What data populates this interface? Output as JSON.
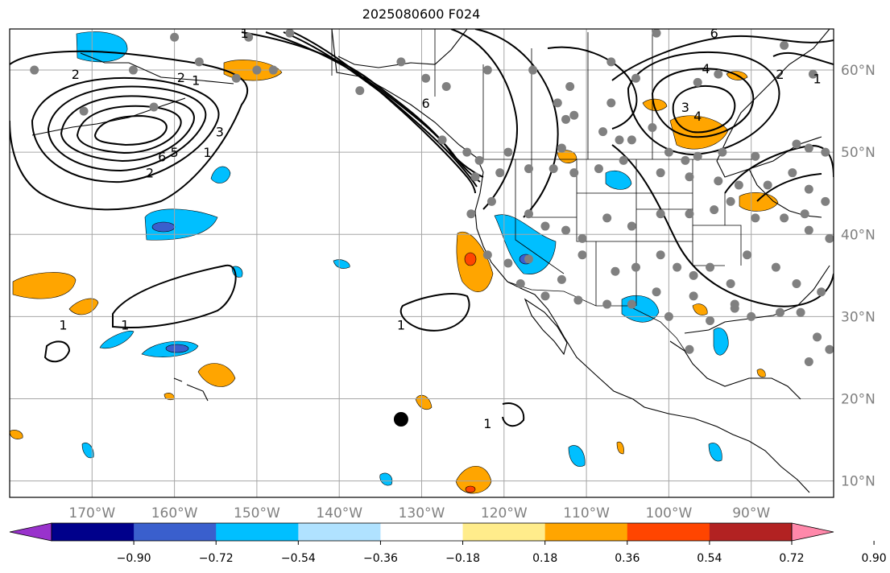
{
  "title": "2025080600 F024",
  "map": {
    "projection": "PlateCarree",
    "lon_range": [
      -180,
      -80
    ],
    "lat_range": [
      8,
      65
    ],
    "lon_ticks": [
      {
        "lon": -170,
        "label": "170°W"
      },
      {
        "lon": -160,
        "label": "160°W"
      },
      {
        "lon": -150,
        "label": "150°W"
      },
      {
        "lon": -140,
        "label": "140°W"
      },
      {
        "lon": -130,
        "label": "130°W"
      },
      {
        "lon": -120,
        "label": "120°W"
      },
      {
        "lon": -110,
        "label": "110°W"
      },
      {
        "lon": -100,
        "label": "100°W"
      },
      {
        "lon": -90,
        "label": "90°W"
      }
    ],
    "lat_ticks": [
      {
        "lat": 60,
        "label": "60°N"
      },
      {
        "lat": 50,
        "label": "50°N"
      },
      {
        "lat": 40,
        "label": "40°N"
      },
      {
        "lat": 30,
        "label": "30°N"
      },
      {
        "lat": 20,
        "label": "20°N"
      },
      {
        "lat": 10,
        "label": "10°N"
      }
    ],
    "grid": true,
    "colors": {
      "grid": "#a6a6a6",
      "contour": "#000000",
      "station": "#808080",
      "land": "#000000"
    }
  },
  "colorbar": {
    "extend": "both",
    "colors": [
      "#9932CC",
      "#00008B",
      "#3A5FCD",
      "#00BFFF",
      "#B0E2FF",
      "#FFFFFF",
      "#FFEC8B",
      "#FFA500",
      "#FF4500",
      "#B22222",
      "#FF88AA"
    ],
    "ticks": [
      "−0.90",
      "−0.72",
      "−0.54",
      "−0.36",
      "−0.18",
      "0.18",
      "0.36",
      "0.54",
      "0.72",
      "0.90"
    ]
  },
  "contour_labels": [
    {
      "text": "2",
      "lon": -172.0,
      "lat": 59.5
    },
    {
      "text": "2",
      "lon": -163.0,
      "lat": 47.5
    },
    {
      "text": "6",
      "lon": -161.5,
      "lat": 49.5
    },
    {
      "text": "5",
      "lon": -160.0,
      "lat": 50.0
    },
    {
      "text": "1",
      "lon": -156.0,
      "lat": 50.0
    },
    {
      "text": "3",
      "lon": -154.5,
      "lat": 52.5
    },
    {
      "text": "2",
      "lon": -159.2,
      "lat": 59.1
    },
    {
      "text": "1",
      "lon": -157.4,
      "lat": 58.8
    },
    {
      "text": "1",
      "lon": -151.5,
      "lat": 64.5
    },
    {
      "text": "6",
      "lon": -129.5,
      "lat": 56.0
    },
    {
      "text": "4",
      "lon": -95.5,
      "lat": 60.2
    },
    {
      "text": "6",
      "lon": -94.5,
      "lat": 64.5
    },
    {
      "text": "2",
      "lon": -86.5,
      "lat": 59.5
    },
    {
      "text": "1",
      "lon": -82.0,
      "lat": 59.0
    },
    {
      "text": "3",
      "lon": -98.0,
      "lat": 55.5
    },
    {
      "text": "4",
      "lon": -96.5,
      "lat": 54.4
    },
    {
      "text": "1",
      "lon": -173.5,
      "lat": 29.0
    },
    {
      "text": "1",
      "lon": -166.0,
      "lat": 29.0
    },
    {
      "text": "1",
      "lon": -132.5,
      "lat": 29.0
    },
    {
      "text": "1",
      "lon": -122.0,
      "lat": 17.0
    }
  ],
  "stations": [
    [
      -177,
      60
    ],
    [
      -165,
      60
    ],
    [
      -160,
      64
    ],
    [
      -157,
      61
    ],
    [
      -151,
      64
    ],
    [
      -148,
      60
    ],
    [
      -146,
      64.5
    ],
    [
      -137.5,
      57.5
    ],
    [
      -132.5,
      61
    ],
    [
      -129.5,
      59
    ],
    [
      -171,
      55
    ],
    [
      -162.5,
      55.5
    ],
    [
      -152.5,
      59
    ],
    [
      -150,
      60
    ],
    [
      -127,
      58
    ],
    [
      -122,
      60
    ],
    [
      -116.5,
      60
    ],
    [
      -112,
      58
    ],
    [
      -107,
      61
    ],
    [
      -104,
      59
    ],
    [
      -96.5,
      58.5
    ],
    [
      -94,
      59.5
    ],
    [
      -101.5,
      64.5
    ],
    [
      -86,
      63
    ],
    [
      -82.5,
      59.5
    ],
    [
      -113.5,
      56
    ],
    [
      -112.5,
      54
    ],
    [
      -111.5,
      54.5
    ],
    [
      -107,
      56
    ],
    [
      -108,
      52.5
    ],
    [
      -106,
      51.5
    ],
    [
      -104.5,
      51.5
    ],
    [
      -102,
      53
    ],
    [
      -100,
      50
    ],
    [
      -98,
      49
    ],
    [
      -96.5,
      49.5
    ],
    [
      -93.5,
      50
    ],
    [
      -89.5,
      49.5
    ],
    [
      -84.5,
      51
    ],
    [
      -83,
      50.5
    ],
    [
      -81,
      50
    ],
    [
      -127.5,
      51.5
    ],
    [
      -124.5,
      50
    ],
    [
      -123,
      49
    ],
    [
      -123.5,
      47
    ],
    [
      -120.5,
      47.5
    ],
    [
      -119.5,
      50
    ],
    [
      -117,
      48
    ],
    [
      -114,
      48
    ],
    [
      -113,
      50.5
    ],
    [
      -111.5,
      47.5
    ],
    [
      -108.5,
      48
    ],
    [
      -105.5,
      49
    ],
    [
      -101,
      47.5
    ],
    [
      -97.5,
      47
    ],
    [
      -94,
      46.5
    ],
    [
      -91.5,
      46
    ],
    [
      -88,
      46
    ],
    [
      -85,
      47.5
    ],
    [
      -83,
      45.5
    ],
    [
      -81,
      44
    ],
    [
      -124,
      42.5
    ],
    [
      -121.5,
      44
    ],
    [
      -117,
      42.5
    ],
    [
      -115,
      41
    ],
    [
      -112.5,
      40.5
    ],
    [
      -110.5,
      39.5
    ],
    [
      -107.5,
      42
    ],
    [
      -104.5,
      41
    ],
    [
      -101,
      42.5
    ],
    [
      -97.5,
      42.5
    ],
    [
      -94.5,
      43
    ],
    [
      -92.5,
      44
    ],
    [
      -89.5,
      42
    ],
    [
      -86,
      42
    ],
    [
      -83.5,
      42.5
    ],
    [
      -83,
      40.5
    ],
    [
      -80.5,
      39.5
    ],
    [
      -122,
      37.5
    ],
    [
      -119.5,
      36.5
    ],
    [
      -117,
      37
    ],
    [
      -113,
      34.5
    ],
    [
      -110.5,
      37.5
    ],
    [
      -106.5,
      35.5
    ],
    [
      -104,
      36
    ],
    [
      -101,
      37.5
    ],
    [
      -99,
      36
    ],
    [
      -97,
      35
    ],
    [
      -95,
      36
    ],
    [
      -92.5,
      34
    ],
    [
      -90.5,
      37.5
    ],
    [
      -87,
      36
    ],
    [
      -84.5,
      34
    ],
    [
      -81.5,
      33
    ],
    [
      -118,
      34
    ],
    [
      -115,
      32.5
    ],
    [
      -111,
      32
    ],
    [
      -107.5,
      31.5
    ],
    [
      -104.5,
      31.5
    ],
    [
      -101.5,
      33
    ],
    [
      -100,
      30
    ],
    [
      -97,
      32.5
    ],
    [
      -95,
      29.5
    ],
    [
      -92,
      31
    ],
    [
      -90,
      30
    ],
    [
      -86.5,
      30.5
    ],
    [
      -84,
      30.5
    ],
    [
      -82,
      27.5
    ],
    [
      -97.5,
      26
    ],
    [
      -92,
      31.5
    ],
    [
      -83,
      24.5
    ],
    [
      -80.5,
      26
    ]
  ],
  "marker": {
    "lon": -132.5,
    "lat": 17.5
  }
}
